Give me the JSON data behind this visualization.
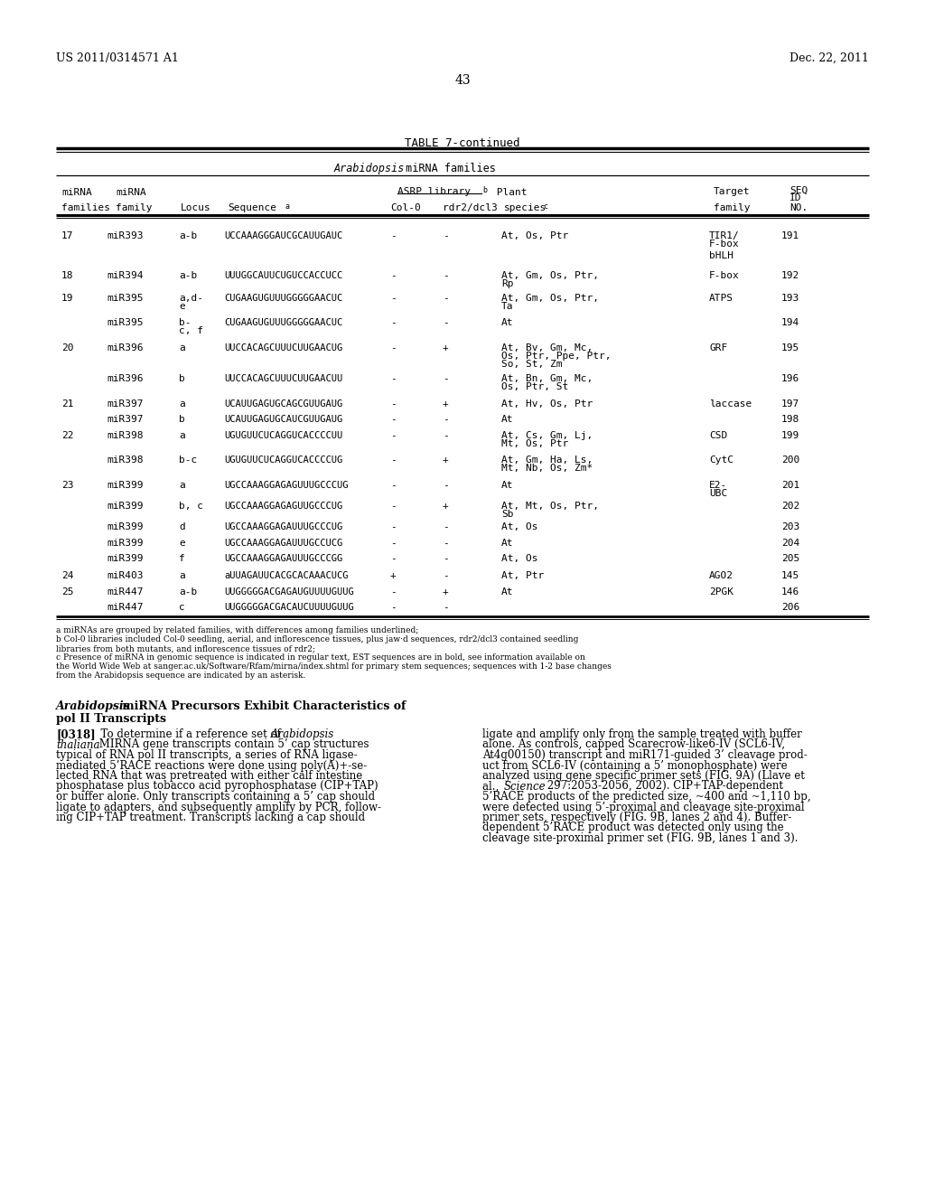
{
  "page_left": "US 2011/0314571 A1",
  "page_right": "Dec. 22, 2011",
  "page_number": "43",
  "table_title": "TABLE 7-continued",
  "footnotes": [
    "a miRNAs are grouped by related families, with differences among families underlined;",
    "b Col-0 libraries included Col-0 seedling, aerial, and inflorescence tissues, plus jaw·d sequences, rdr2/dcl3 contained seedling",
    "libraries from both mutants, and inflorescence tissues of rdr2;",
    "c Presence of miRNA in genomic sequence is indicated in regular text, EST sequences are in bold, see information available on",
    "the World Wide Web at sanger.ac.uk/Software/Rfam/mirna/index.shtml for primary stem sequences; sequences with 1-2 base changes",
    "from the Arabidopsis sequence are indicated by an asterisk."
  ],
  "left_col_lines": [
    "[0318]   To determine if a reference set of Arabidopsis",
    "thaliana MIRNA gene transcripts contain 5’ cap structures",
    "typical of RNA pol II transcripts, a series of RNA ligase-",
    "mediated 5’RACE reactions were done using poly(A)+-se-",
    "lected RNA that was pretreated with either calf intestine",
    "phosphatase plus tobacco acid pyrophosphatase (CIP+TAP)",
    "or buffer alone. Only transcripts containing a 5’ cap should",
    "ligate to adapters, and subsequently amplify by PCR, follow-",
    "ing CIP+TAP treatment. Transcripts lacking a cap should"
  ],
  "right_col_lines": [
    "ligate and amplify only from the sample treated with buffer",
    "alone. As controls, capped Scarecrow-like6-IV (SCL6-IV,",
    "At4g00150) transcript and miR171-guided 3’ cleavage prod-",
    "uct from SCL6-IV (containing a 5’ monophosphate) were",
    "analyzed using gene specific primer sets (FIG. 9A) (Llave et",
    "al., Science 297:2053-2056, 2002). CIP+TAP-dependent",
    "5’RACE products of the predicted size, ~400 and ~1,110 bp,",
    "were detected using 5’-proximal and cleavage site-proximal",
    "primer sets, respectively (FIG. 9B, lanes 2 and 4). Buffer-",
    "dependent 5’RACE product was detected only using the",
    "cleavage site-proximal primer set (FIG. 9B, lanes 1 and 3)."
  ]
}
